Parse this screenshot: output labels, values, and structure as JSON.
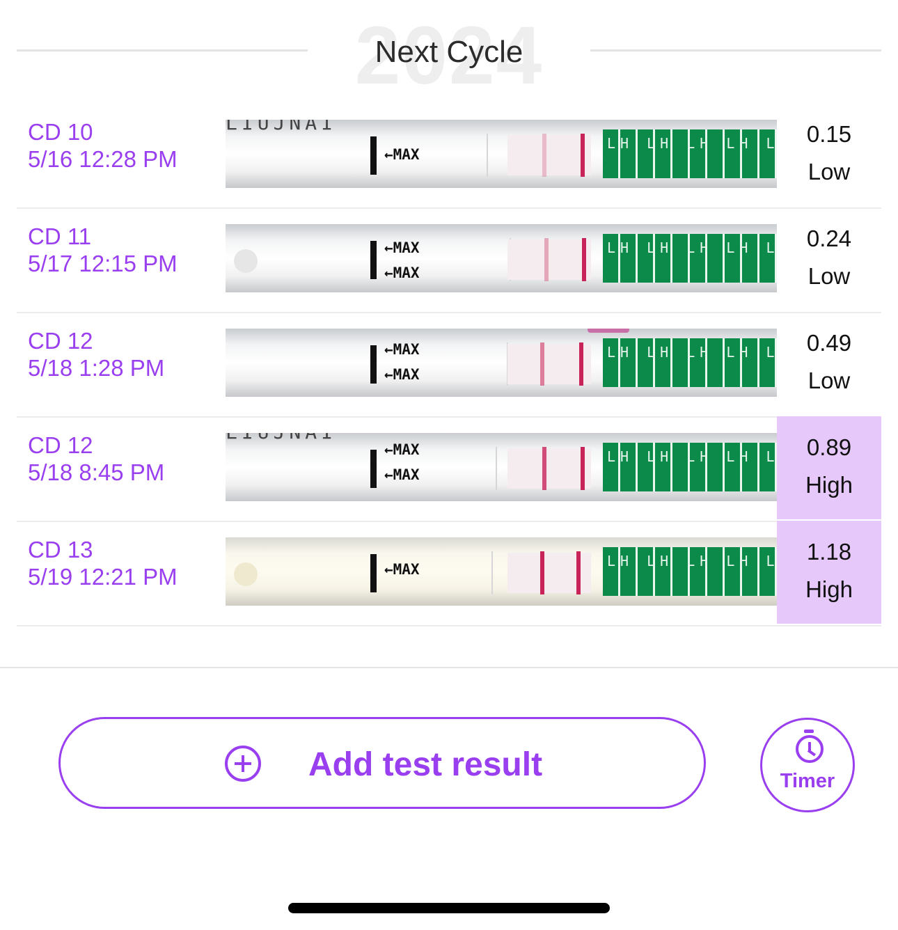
{
  "header": {
    "year": "2024",
    "title": "Next Cycle"
  },
  "rows": [
    {
      "day": "CD 10",
      "datetime": "5/16 12:28 PM",
      "value": "0.15",
      "level": "Low",
      "status": "low"
    },
    {
      "day": "CD 11",
      "datetime": "5/17 12:15 PM",
      "value": "0.24",
      "level": "Low",
      "status": "low"
    },
    {
      "day": "CD 12",
      "datetime": "5/18 1:28 PM",
      "value": "0.49",
      "level": "Low",
      "status": "low"
    },
    {
      "day": "CD 12",
      "datetime": "5/18 8:45 PM",
      "value": "0.89",
      "level": "High",
      "status": "high"
    },
    {
      "day": "CD 13",
      "datetime": "5/19 12:21 PM",
      "value": "1.18",
      "level": "High",
      "status": "high"
    }
  ],
  "strip": {
    "max_label": "←MAX",
    "lh_label": "LH LH LH LH LH",
    "brand_fragment": "LIUJNAI"
  },
  "actions": {
    "add_label": "Add test result",
    "add_icon": "plus-circle-icon",
    "timer_label": "Timer",
    "timer_icon": "stopwatch-icon"
  },
  "colors": {
    "accent": "#9a3ff0",
    "high_bg": "#e6c8fb"
  }
}
